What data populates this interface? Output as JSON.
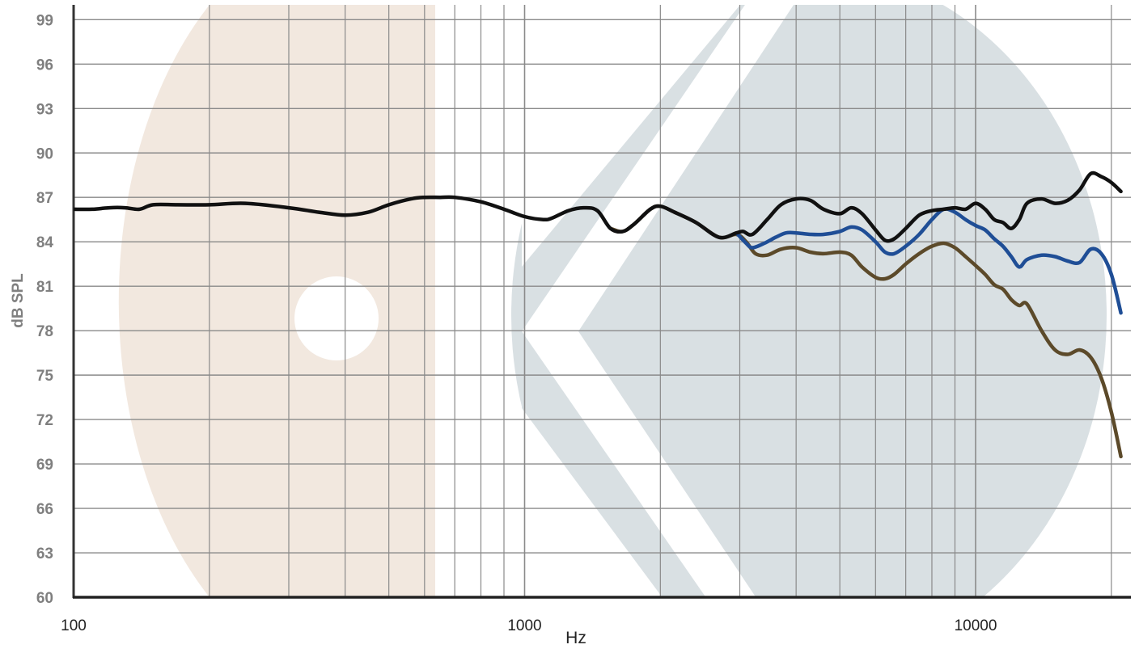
{
  "chart_data": {
    "type": "line",
    "title": "",
    "xlabel": "Hz",
    "ylabel": "dB SPL",
    "xscale": "log",
    "xlim": [
      100,
      22000
    ],
    "ylim": [
      60,
      100
    ],
    "grid": true,
    "legend": "none",
    "y_ticks": [
      "60",
      "63",
      "66",
      "69",
      "72",
      "75",
      "78",
      "81",
      "84",
      "87",
      "90",
      "93",
      "96",
      "99"
    ],
    "x_ticks": [
      "100",
      "1000",
      "10000"
    ],
    "watermark": {
      "description": "faint brand logo behind plot",
      "colors": {
        "beige": "#f2e8df",
        "slate": "#d9e0e3"
      }
    },
    "series": [
      {
        "color": "#111111",
        "x": [
          100,
          110,
          120,
          130,
          140,
          150,
          170,
          200,
          240,
          300,
          350,
          400,
          450,
          500,
          560,
          600,
          650,
          700,
          800,
          900,
          1000,
          1100,
          1150,
          1250,
          1350,
          1450,
          1550,
          1650,
          1750,
          1900,
          2000,
          2150,
          2400,
          2700,
          2950,
          3050,
          3200,
          3450,
          3700,
          4000,
          4300,
          4600,
          5000,
          5300,
          5600,
          6000,
          6300,
          6600,
          7000,
          7500,
          8000,
          8500,
          9000,
          9500,
          10000,
          10500,
          11000,
          11500,
          12000,
          12500,
          13000,
          14000,
          15000,
          16000,
          17000,
          18000,
          19000,
          20000,
          21000
        ],
        "y": [
          86.2,
          86.2,
          86.3,
          86.3,
          86.2,
          86.5,
          86.5,
          86.5,
          86.6,
          86.3,
          86.0,
          85.8,
          86.0,
          86.5,
          86.9,
          87.0,
          87.0,
          87.0,
          86.7,
          86.2,
          85.7,
          85.5,
          85.6,
          86.1,
          86.3,
          86.1,
          84.9,
          84.7,
          85.2,
          86.2,
          86.4,
          86.0,
          85.3,
          84.3,
          84.6,
          84.7,
          84.5,
          85.5,
          86.5,
          86.9,
          86.8,
          86.2,
          85.9,
          86.3,
          85.9,
          84.8,
          84.1,
          84.2,
          84.9,
          85.8,
          86.1,
          86.2,
          86.3,
          86.2,
          86.6,
          86.2,
          85.5,
          85.3,
          84.9,
          85.5,
          86.6,
          86.9,
          86.6,
          86.8,
          87.5,
          88.6,
          88.4,
          88.0,
          87.4
        ]
      },
      {
        "color": "#1f4e96",
        "x": [
          2950,
          3100,
          3200,
          3400,
          3600,
          3800,
          4000,
          4300,
          4600,
          5000,
          5300,
          5600,
          6000,
          6300,
          6600,
          7000,
          7500,
          8000,
          8500,
          9000,
          9500,
          10000,
          10500,
          11000,
          11500,
          12000,
          12500,
          13000,
          14000,
          15000,
          16000,
          17000,
          18000,
          19000,
          20000,
          21000
        ],
        "y": [
          84.6,
          83.9,
          83.6,
          83.9,
          84.3,
          84.6,
          84.6,
          84.5,
          84.5,
          84.7,
          85.0,
          84.8,
          84.0,
          83.3,
          83.2,
          83.7,
          84.5,
          85.5,
          86.2,
          86.0,
          85.5,
          85.1,
          84.8,
          84.2,
          83.7,
          83.0,
          82.3,
          82.8,
          83.1,
          83.0,
          82.7,
          82.6,
          83.5,
          83.2,
          81.8,
          79.2
        ]
      },
      {
        "color": "#5c4a2a",
        "x": [
          1550,
          1650,
          1750,
          1900,
          2000,
          2150,
          2400,
          2700,
          2950,
          3100,
          3250,
          3450,
          3700,
          4000,
          4300,
          4600,
          5000,
          5300,
          5600,
          6000,
          6300,
          6600,
          7000,
          7500,
          8000,
          8500,
          9000,
          9500,
          10000,
          10500,
          11000,
          11500,
          12000,
          12500,
          13000,
          14000,
          15000,
          16000,
          17000,
          18000,
          19000,
          20000,
          21000
        ],
        "y": [
          84.9,
          84.7,
          85.2,
          86.2,
          86.4,
          86.0,
          85.3,
          84.3,
          84.5,
          84.0,
          83.2,
          83.1,
          83.5,
          83.6,
          83.3,
          83.2,
          83.3,
          83.1,
          82.3,
          81.6,
          81.5,
          81.8,
          82.5,
          83.2,
          83.7,
          83.9,
          83.6,
          83.0,
          82.4,
          81.8,
          81.1,
          80.8,
          80.1,
          79.7,
          79.8,
          78.0,
          76.7,
          76.4,
          76.7,
          76.2,
          74.8,
          72.5,
          69.5
        ]
      }
    ]
  }
}
